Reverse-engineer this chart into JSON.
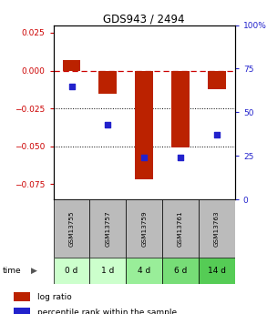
{
  "title": "GDS943 / 2494",
  "samples": [
    "GSM13755",
    "GSM13757",
    "GSM13759",
    "GSM13761",
    "GSM13763"
  ],
  "time_labels": [
    "0 d",
    "1 d",
    "4 d",
    "6 d",
    "14 d"
  ],
  "log_ratio": [
    0.007,
    -0.015,
    -0.072,
    -0.051,
    -0.012
  ],
  "percentile_rank": [
    65,
    43,
    24,
    24,
    37
  ],
  "ylim_left": [
    -0.085,
    0.03
  ],
  "ylim_right": [
    -0.085,
    0.03
  ],
  "yticks_left": [
    0.025,
    0,
    -0.025,
    -0.05,
    -0.075
  ],
  "yticks_right_vals": [
    100,
    75,
    50,
    25,
    0
  ],
  "hlines": [
    -0.025,
    -0.05
  ],
  "bar_color": "#bb2200",
  "dot_color": "#2222cc",
  "bar_width": 0.5,
  "gsm_bg_color": "#bbbbbb",
  "zero_line_color": "#cc0000",
  "hline_color": "#000000",
  "legend_bar_label": "log ratio",
  "legend_dot_label": "percentile rank within the sample",
  "time_label": "time",
  "background_color": "#ffffff",
  "time_colors": [
    "#ccffcc",
    "#ccffcc",
    "#99ee99",
    "#77dd77",
    "#55cc55"
  ]
}
